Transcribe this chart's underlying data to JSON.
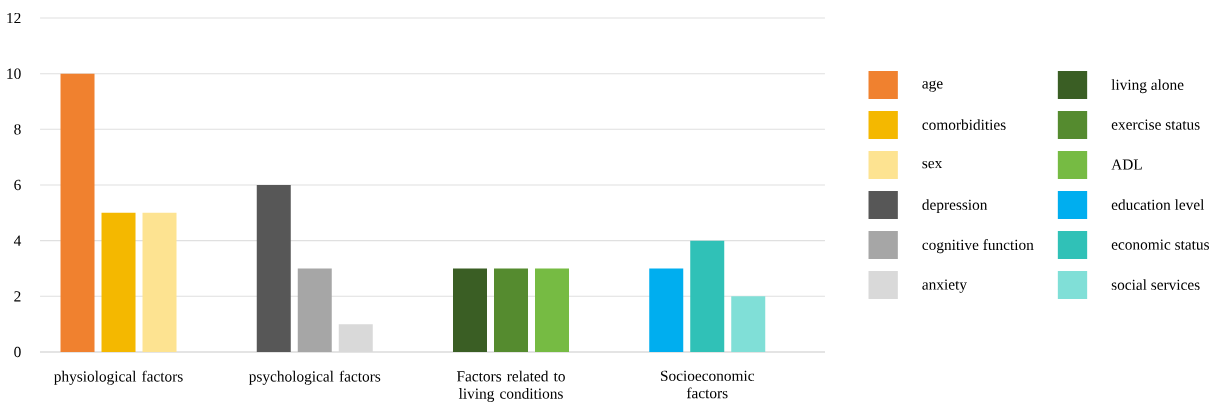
{
  "chart_data": {
    "type": "bar",
    "categories": [
      "physiological factors",
      "psychological factors",
      "Factors related to living conditions",
      "Socioeconomic factors"
    ],
    "series": [
      {
        "name": "age",
        "color": "#f0812f",
        "values": [
          10,
          null,
          null,
          null
        ]
      },
      {
        "name": "comorbidities",
        "color": "#f4b800",
        "values": [
          5,
          null,
          null,
          null
        ]
      },
      {
        "name": "sex",
        "color": "#fde391",
        "values": [
          5,
          null,
          null,
          null
        ]
      },
      {
        "name": "depression",
        "color": "#575757",
        "values": [
          null,
          6,
          null,
          null
        ]
      },
      {
        "name": "cognitive function",
        "color": "#a6a6a6",
        "values": [
          null,
          3,
          null,
          null
        ]
      },
      {
        "name": "anxiety",
        "color": "#d9d9d9",
        "values": [
          null,
          1,
          null,
          null
        ]
      },
      {
        "name": "living alone",
        "color": "#3a5e24",
        "values": [
          null,
          null,
          3,
          null
        ]
      },
      {
        "name": "exercise status",
        "color": "#558b2f",
        "values": [
          null,
          null,
          3,
          null
        ]
      },
      {
        "name": "ADL",
        "color": "#76bb43",
        "values": [
          null,
          null,
          3,
          null
        ]
      },
      {
        "name": "education level",
        "color": "#00aeef",
        "values": [
          null,
          null,
          null,
          3
        ]
      },
      {
        "name": "economic status",
        "color": "#30c1b7",
        "values": [
          null,
          null,
          null,
          4
        ]
      },
      {
        "name": "social services",
        "color": "#80dfd7",
        "values": [
          null,
          null,
          null,
          2
        ]
      }
    ],
    "ylim": [
      0,
      12
    ],
    "yticks": [
      0,
      2,
      4,
      6,
      8,
      10,
      12
    ],
    "grid": "y",
    "legend": "right"
  }
}
